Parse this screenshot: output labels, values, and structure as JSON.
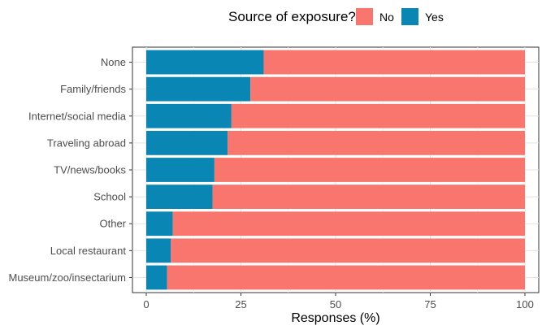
{
  "chart_data": {
    "type": "bar",
    "orientation": "horizontal",
    "stacked": true,
    "categories": [
      "None",
      "Family/friends",
      "Internet/social media",
      "Traveling abroad",
      "TV/news/books",
      "School",
      "Other",
      "Local restaurant",
      "Museum/zoo/insectarium"
    ],
    "series": [
      {
        "name": "Yes",
        "color": "#0a86b5",
        "values": [
          31,
          27.5,
          22.5,
          21.5,
          18,
          17.5,
          7,
          6.5,
          5.5
        ]
      },
      {
        "name": "No",
        "color": "#f8766d",
        "values": [
          69,
          72.5,
          77.5,
          78.5,
          82,
          82.5,
          93,
          93.5,
          94.5
        ]
      }
    ],
    "xlabel": "Responses (%)",
    "ylabel": "",
    "xlim": [
      0,
      100
    ],
    "xticks": [
      0,
      25,
      50,
      75,
      100
    ],
    "tick_labels": [
      "0",
      "25",
      "50",
      "75",
      "100"
    ],
    "legend": {
      "title": "Source of exposure?",
      "position": "top",
      "entries": [
        {
          "label": "No",
          "color": "#f8766d"
        },
        {
          "label": "Yes",
          "color": "#0a86b5"
        }
      ]
    },
    "grid": true
  }
}
